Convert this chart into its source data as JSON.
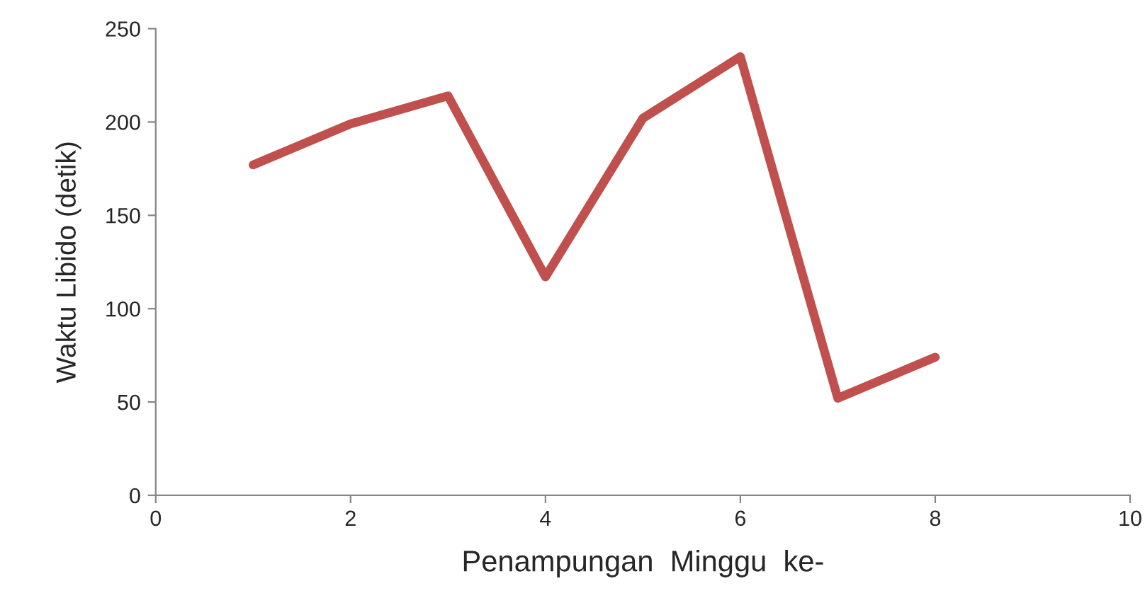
{
  "chart_data": {
    "type": "line",
    "xlabel": "Penampungan  Minggu  ke-",
    "ylabel": "Waktu Libido (detik)",
    "x": [
      1,
      2,
      3,
      4,
      5,
      6,
      7,
      8
    ],
    "series": [
      {
        "color": "#c0504d",
        "values": [
          177,
          199,
          214,
          117,
          202,
          235,
          52,
          74
        ]
      }
    ],
    "xlim": [
      0,
      10
    ],
    "xticks": [
      0,
      2,
      4,
      6,
      8,
      10
    ],
    "ylim": [
      0,
      250
    ],
    "yticks": [
      0,
      50,
      100,
      150,
      200,
      250
    ],
    "marker": "none",
    "line_style": "solid"
  }
}
